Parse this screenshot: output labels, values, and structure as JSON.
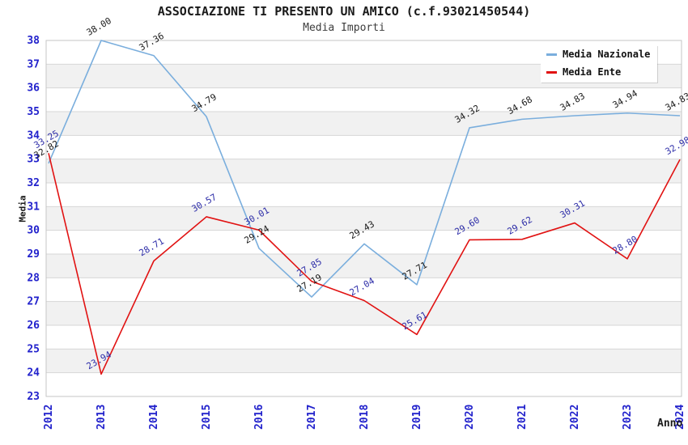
{
  "title": "ASSOCIAZIONE TI PRESENTO UN AMICO (c.f.93021450544)",
  "subtitle": "Media Importi",
  "legend": {
    "items": [
      {
        "label": "Media Nazionale",
        "color": "#7aaedd"
      },
      {
        "label": "Media Ente",
        "color": "#e11212"
      }
    ]
  },
  "colors": {
    "tick_text": "#2222cc",
    "grid": "#d6d6d6",
    "band": "#f1f1f1",
    "border": "#c6c6c6",
    "label_nazionale": "#1a1a1a",
    "label_ente": "#2d2da8"
  },
  "chart_data": {
    "type": "line",
    "x": [
      "2012",
      "2013",
      "2014",
      "2015",
      "2016",
      "2017",
      "2018",
      "2019",
      "2020",
      "2021",
      "2022",
      "2023",
      "2024"
    ],
    "xlabel": "Anno",
    "ylabel": "Media",
    "ylim": [
      23,
      38
    ],
    "y_ticks": [
      23,
      24,
      25,
      26,
      27,
      28,
      29,
      30,
      31,
      32,
      33,
      34,
      35,
      36,
      37,
      38
    ],
    "grid": "horizontal-lines-with-alternating-bands",
    "legend_position": "top-right",
    "series": [
      {
        "name": "Media Nazionale",
        "color": "#7aaedd",
        "label_color": "#1a1a1a",
        "values": [
          32.82,
          38.0,
          37.36,
          34.79,
          29.24,
          27.19,
          29.43,
          27.71,
          34.32,
          34.68,
          34.83,
          34.94,
          34.83
        ],
        "labels": [
          "32.82",
          "38.00",
          "37.36",
          "34.79",
          "29.24",
          "27.19",
          "29.43",
          "27.71",
          "34.32",
          "34.68",
          "34.83",
          "34.94",
          "34.83"
        ]
      },
      {
        "name": "Media Ente",
        "color": "#e11212",
        "label_color": "#2d2da8",
        "values": [
          33.25,
          23.94,
          28.71,
          30.57,
          30.01,
          27.85,
          27.04,
          25.61,
          29.6,
          29.62,
          30.31,
          28.8,
          32.98
        ],
        "labels": [
          "33.25",
          "23.94",
          "28.71",
          "30.57",
          "30.01",
          "27.85",
          "27.04",
          "25.61",
          "29.60",
          "29.62",
          "30.31",
          "28.80",
          "32.98"
        ]
      }
    ]
  }
}
